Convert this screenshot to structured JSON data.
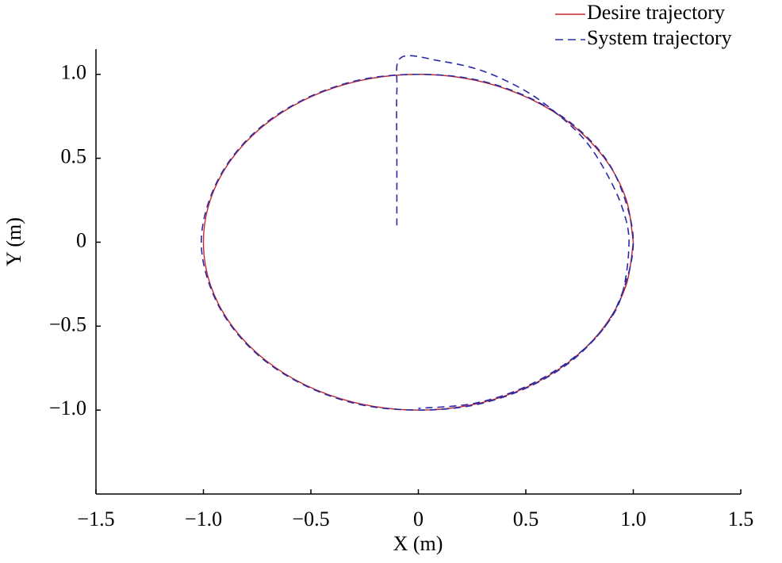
{
  "chart_data": {
    "type": "line",
    "xlabel": "X (m)",
    "ylabel": "Y (m)",
    "xlim": [
      -1.5,
      1.5
    ],
    "ylim": [
      -1.5,
      1.15
    ],
    "xticks": [
      {
        "value": -1.5,
        "label": "−1.5"
      },
      {
        "value": -1.0,
        "label": "−1.0"
      },
      {
        "value": -0.5,
        "label": "−0.5"
      },
      0,
      0.5,
      {
        "value": 1.0,
        "label": "1.0"
      },
      1.5
    ],
    "yticks": [
      {
        "value": -1.0,
        "label": "−1.0"
      },
      {
        "value": -0.5,
        "label": "−0.5"
      },
      0,
      0.5,
      {
        "value": 1.0,
        "label": "1.0"
      }
    ],
    "legend": "top-right",
    "series": [
      {
        "name": "Desire trajectory",
        "color": "#c0282d",
        "dash": false,
        "x": [
          1,
          0.966,
          0.866,
          0.707,
          0.5,
          0.259,
          0,
          -0.259,
          -0.5,
          -0.707,
          -0.866,
          -0.966,
          -1,
          -0.966,
          -0.866,
          -0.707,
          -0.5,
          -0.259,
          0,
          0.259,
          0.5,
          0.707,
          0.866,
          0.966,
          1
        ],
        "values": [
          0,
          0.259,
          0.5,
          0.707,
          0.866,
          0.966,
          1,
          0.966,
          0.866,
          0.707,
          0.5,
          0.259,
          0,
          -0.259,
          -0.5,
          -0.707,
          -0.866,
          -0.966,
          -1,
          -0.966,
          -0.866,
          -0.707,
          -0.5,
          -0.259,
          0
        ]
      },
      {
        "name": "System trajectory",
        "color": "#2a2aa8",
        "dash": true,
        "x": [
          -0.1,
          -0.1,
          -0.1,
          -0.08,
          0.1,
          0.3,
          0.5,
          0.65,
          0.78,
          0.88,
          0.95,
          0.98,
          0.95,
          0.87,
          0.71,
          0.5,
          0.26,
          0,
          -0.26,
          -0.5,
          -0.71,
          -0.87,
          -0.97,
          -1.01,
          -0.97,
          -0.87,
          -0.71,
          -0.5,
          -0.26,
          0,
          0.26,
          0.5,
          0.71,
          0.87,
          0.96,
          1.0,
          0.96,
          0.87,
          0.71,
          0.5,
          0.26,
          0
        ],
        "values": [
          0.1,
          0.5,
          0.9,
          1.1,
          1.08,
          1.02,
          0.9,
          0.76,
          0.6,
          0.4,
          0.2,
          0,
          -0.3,
          -0.5,
          -0.71,
          -0.87,
          -0.97,
          -1,
          -0.97,
          -0.87,
          -0.71,
          -0.5,
          -0.26,
          0,
          0.26,
          0.5,
          0.71,
          0.87,
          0.97,
          1.0,
          0.97,
          0.87,
          0.71,
          0.5,
          0.26,
          0,
          -0.26,
          -0.5,
          -0.7,
          -0.86,
          -0.96,
          -0.99
        ]
      }
    ]
  }
}
